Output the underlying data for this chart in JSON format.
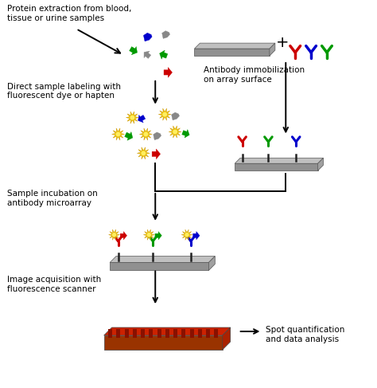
{
  "bg_color": "#ffffff",
  "text_color": "#000000",
  "label_protein_extraction": "Protein extraction from blood,\ntissue or urine samples",
  "label_direct_labeling": "Direct sample labeling with\nfluorescent dye or hapten",
  "label_antibody_immob": "Antibody immobilization\non array surface",
  "label_sample_incubation": "Sample incubation on\nantibody microarray",
  "label_image_acquisition": "Image acquisition with\nfluorescence scanner",
  "label_spot_quantification": "Spot quantification\nand data analysis",
  "colors": {
    "red": "#cc0000",
    "green": "#009900",
    "blue": "#0000cc",
    "gray": "#888888",
    "dark_gray": "#444444",
    "plate_light": "#c0c0c0",
    "plate_mid": "#909090",
    "plate_dark": "#666666",
    "stem_color": "#222222",
    "scanner_top": "#cc2200",
    "scanner_grid": "#881100",
    "scanner_front": "#993300",
    "scanner_right": "#aa2200"
  },
  "figsize": [
    4.74,
    4.87
  ],
  "dpi": 100
}
